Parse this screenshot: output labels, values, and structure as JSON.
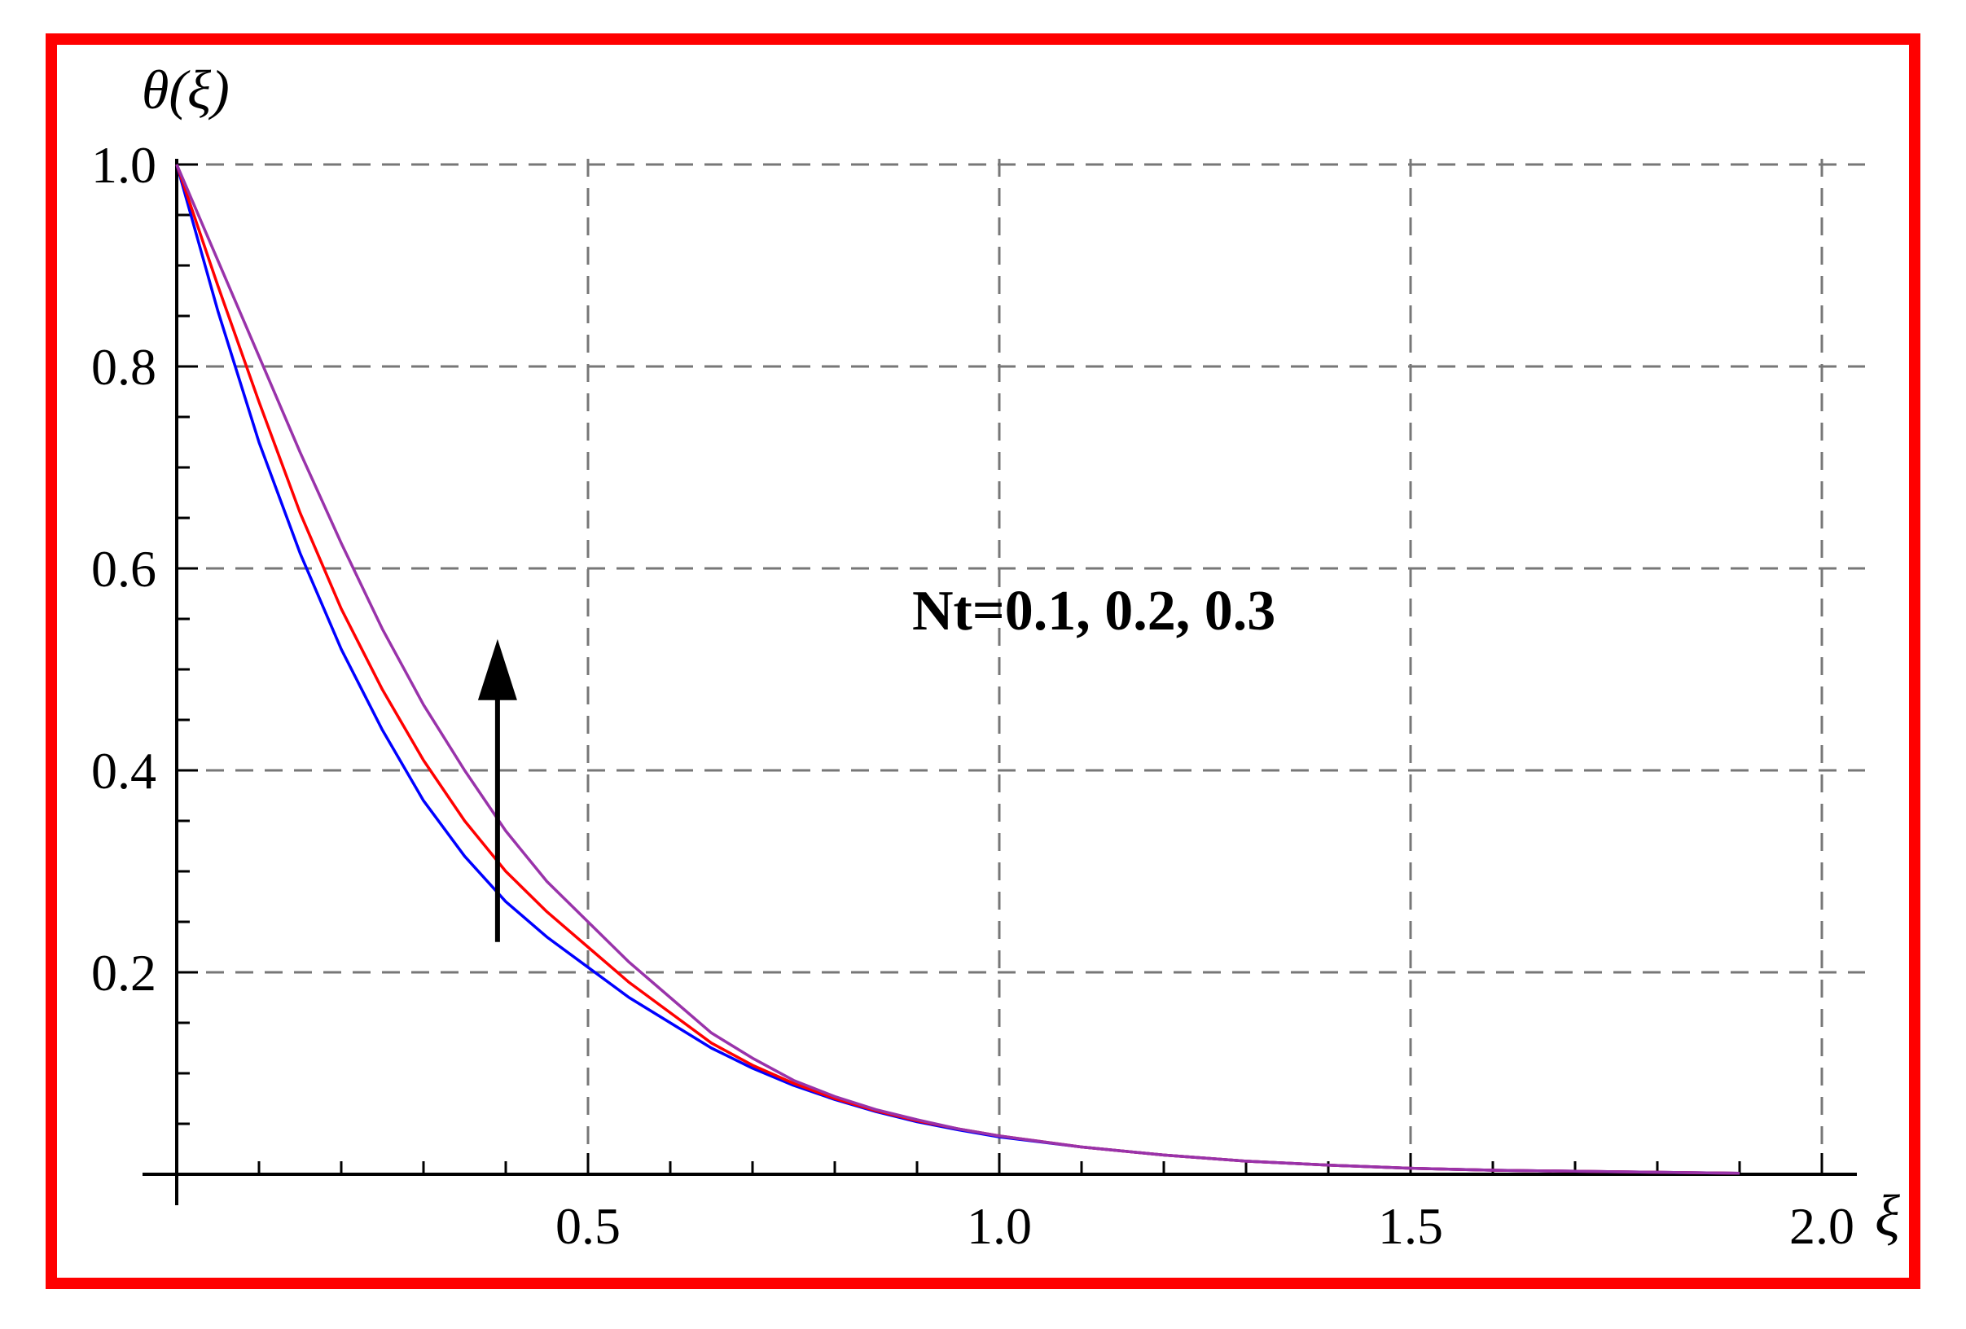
{
  "chart_data": {
    "type": "line",
    "xlabel": "ξ",
    "ylabel": "θ(ξ)",
    "xlim": [
      0,
      2.05
    ],
    "ylim": [
      0,
      1.05
    ],
    "xticks": [
      {
        "value": 0.5,
        "label": "0.5"
      },
      {
        "value": 1.0,
        "label": "1.0"
      },
      {
        "value": 1.5,
        "label": "1.5"
      },
      {
        "value": 2.0,
        "label": "2.0"
      }
    ],
    "yticks": [
      {
        "value": 0.2,
        "label": "0.2"
      },
      {
        "value": 0.4,
        "label": "0.4"
      },
      {
        "value": 0.6,
        "label": "0.6"
      },
      {
        "value": 0.8,
        "label": "0.8"
      },
      {
        "value": 1.0,
        "label": "1.0"
      }
    ],
    "grid": true,
    "annotation": "Nt=0.1, 0.2, 0.3",
    "arrow": {
      "x": 0.39,
      "y_from": 0.23,
      "y_to": 0.53
    },
    "x": [
      0,
      0.05,
      0.1,
      0.15,
      0.2,
      0.25,
      0.3,
      0.35,
      0.4,
      0.45,
      0.5,
      0.55,
      0.6,
      0.65,
      0.7,
      0.75,
      0.8,
      0.85,
      0.9,
      0.95,
      1.0,
      1.1,
      1.2,
      1.3,
      1.4,
      1.5,
      1.6,
      1.7,
      1.8,
      1.9
    ],
    "series": [
      {
        "color": "#0000ff",
        "values": [
          1.0,
          0.855,
          0.725,
          0.615,
          0.52,
          0.44,
          0.37,
          0.315,
          0.27,
          0.235,
          0.205,
          0.175,
          0.15,
          0.125,
          0.105,
          0.088,
          0.074,
          0.062,
          0.052,
          0.044,
          0.037,
          0.027,
          0.019,
          0.013,
          0.009,
          0.006,
          0.004,
          0.003,
          0.002,
          0.001
        ]
      },
      {
        "color": "#ff0000",
        "values": [
          1.0,
          0.88,
          0.765,
          0.655,
          0.56,
          0.48,
          0.41,
          0.35,
          0.3,
          0.26,
          0.225,
          0.19,
          0.16,
          0.13,
          0.108,
          0.09,
          0.075,
          0.063,
          0.053,
          0.045,
          0.038,
          0.027,
          0.019,
          0.013,
          0.009,
          0.006,
          0.004,
          0.003,
          0.002,
          0.001
        ]
      },
      {
        "color": "#9933aa",
        "values": [
          1.0,
          0.905,
          0.81,
          0.715,
          0.625,
          0.54,
          0.465,
          0.4,
          0.34,
          0.29,
          0.25,
          0.21,
          0.175,
          0.14,
          0.115,
          0.093,
          0.077,
          0.064,
          0.054,
          0.045,
          0.038,
          0.027,
          0.019,
          0.013,
          0.009,
          0.006,
          0.004,
          0.003,
          0.002,
          0.001
        ]
      }
    ]
  }
}
